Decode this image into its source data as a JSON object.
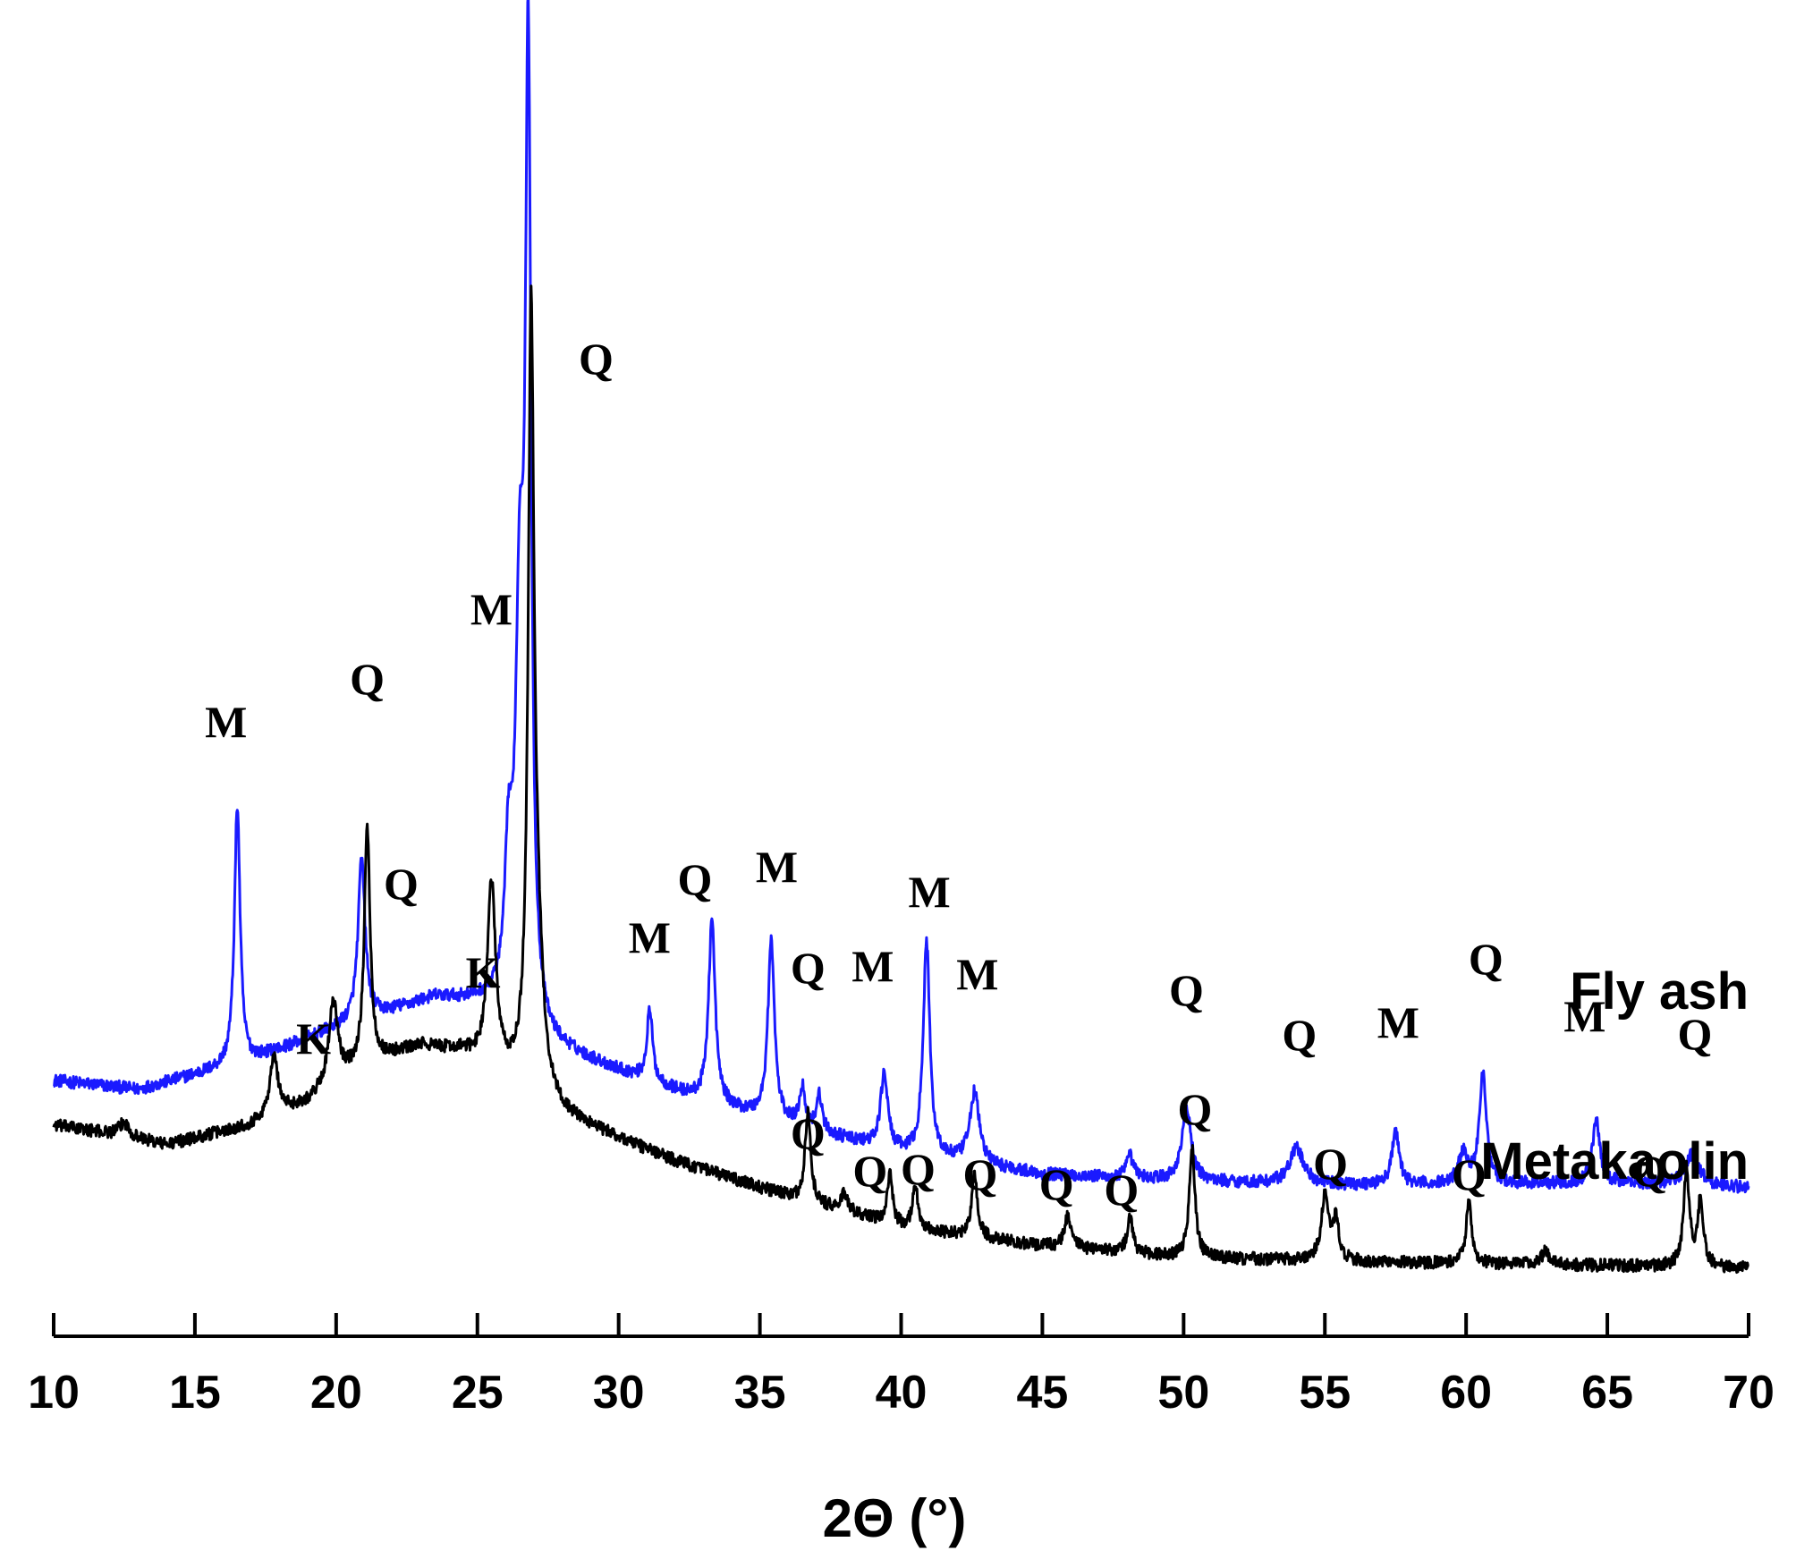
{
  "chart_data": {
    "type": "line",
    "title": "",
    "xlabel": "2Θ (°)",
    "ylabel": "",
    "xlim": [
      10,
      70
    ],
    "xticks": [
      10,
      15,
      20,
      25,
      30,
      35,
      40,
      45,
      50,
      55,
      60,
      65,
      70
    ],
    "y_axis_shown": false,
    "grid": false,
    "series": [
      {
        "name": "Fly ash",
        "color": "#1a1aff",
        "baseline": [
          [
            10,
            210
          ],
          [
            13,
            200
          ],
          [
            17,
            232
          ],
          [
            20,
            268
          ],
          [
            23.5,
            302
          ],
          [
            25.5,
            295
          ],
          [
            27.5,
            248
          ],
          [
            30,
            220
          ],
          [
            33,
            186
          ],
          [
            36,
            160
          ],
          [
            40,
            128
          ],
          [
            45,
            105
          ],
          [
            50,
            97
          ],
          [
            55,
            93
          ],
          [
            60,
            93
          ],
          [
            65,
            96
          ],
          [
            70,
            90
          ]
        ],
        "peaks": [
          {
            "x": 16.5,
            "h": 290,
            "w": 0.12
          },
          {
            "x": 20.9,
            "h": 180,
            "w": 0.15
          },
          {
            "x": 26.1,
            "h": 150,
            "w": 0.15
          },
          {
            "x": 26.5,
            "h": 430,
            "w": 0.18
          },
          {
            "x": 26.8,
            "h": 1040,
            "w": 0.12
          },
          {
            "x": 31.1,
            "h": 80,
            "w": 0.12
          },
          {
            "x": 33.3,
            "h": 205,
            "w": 0.14
          },
          {
            "x": 35.4,
            "h": 200,
            "w": 0.14
          },
          {
            "x": 36.5,
            "h": 45,
            "w": 0.12
          },
          {
            "x": 37.1,
            "h": 40,
            "w": 0.12
          },
          {
            "x": 39.4,
            "h": 85,
            "w": 0.15
          },
          {
            "x": 40.9,
            "h": 240,
            "w": 0.14
          },
          {
            "x": 42.6,
            "h": 80,
            "w": 0.2
          },
          {
            "x": 48.1,
            "h": 25,
            "w": 0.15
          },
          {
            "x": 50.1,
            "h": 80,
            "w": 0.2
          },
          {
            "x": 54,
            "h": 40,
            "w": 0.3
          },
          {
            "x": 57.5,
            "h": 60,
            "w": 0.15
          },
          {
            "x": 59.9,
            "h": 35,
            "w": 0.2
          },
          {
            "x": 60.6,
            "h": 125,
            "w": 0.15
          },
          {
            "x": 64.6,
            "h": 70,
            "w": 0.15
          },
          {
            "x": 68,
            "h": 35,
            "w": 0.3
          }
        ]
      },
      {
        "name": "Metakaolin",
        "color": "#000000",
        "baseline": [
          [
            10,
            160
          ],
          [
            12.5,
            148
          ],
          [
            14,
            138
          ],
          [
            17,
            160
          ],
          [
            19,
            185
          ],
          [
            21,
            228
          ],
          [
            23,
            248
          ],
          [
            24.5,
            240
          ],
          [
            26,
            210
          ],
          [
            28,
            170
          ],
          [
            32,
            120
          ],
          [
            36,
            80
          ],
          [
            40,
            45
          ],
          [
            45,
            25
          ],
          [
            50,
            12
          ],
          [
            55,
            8
          ],
          [
            60,
            5
          ],
          [
            65,
            3
          ],
          [
            70,
            0
          ]
        ],
        "peaks": [
          {
            "x": 12.5,
            "h": 15,
            "w": 0.2
          },
          {
            "x": 17.8,
            "h": 65,
            "w": 0.18
          },
          {
            "x": 19.9,
            "h": 90,
            "w": 0.2
          },
          {
            "x": 21.1,
            "h": 265,
            "w": 0.12
          },
          {
            "x": 25.5,
            "h": 205,
            "w": 0.18
          },
          {
            "x": 26.9,
            "h": 810,
            "w": 0.12
          },
          {
            "x": 27.1,
            "h": 150,
            "w": 0.25
          },
          {
            "x": 36.7,
            "h": 100,
            "w": 0.12
          },
          {
            "x": 38,
            "h": 20,
            "w": 0.15
          },
          {
            "x": 39.6,
            "h": 55,
            "w": 0.12
          },
          {
            "x": 40.5,
            "h": 50,
            "w": 0.12
          },
          {
            "x": 42.6,
            "h": 70,
            "w": 0.12
          },
          {
            "x": 45.9,
            "h": 35,
            "w": 0.15
          },
          {
            "x": 48.1,
            "h": 40,
            "w": 0.12
          },
          {
            "x": 50.3,
            "h": 125,
            "w": 0.12
          },
          {
            "x": 55,
            "h": 75,
            "w": 0.15
          },
          {
            "x": 55.4,
            "h": 45,
            "w": 0.12
          },
          {
            "x": 60.1,
            "h": 70,
            "w": 0.12
          },
          {
            "x": 62.8,
            "h": 15,
            "w": 0.15
          },
          {
            "x": 67.8,
            "h": 110,
            "w": 0.12
          },
          {
            "x": 68.3,
            "h": 75,
            "w": 0.12
          }
        ]
      }
    ],
    "series_labels": [
      {
        "text": "Fly ash",
        "x": 70,
        "y": 290
      },
      {
        "text": "Metakaolin",
        "x": 70,
        "y": 100
      }
    ],
    "annotations": [
      {
        "text": "Q",
        "x": 29.2,
        "y": 1000
      },
      {
        "text": "M",
        "x": 25.5,
        "y": 720
      },
      {
        "text": "Q",
        "x": 21.1,
        "y": 642
      },
      {
        "text": "M",
        "x": 16.1,
        "y": 594
      },
      {
        "text": "Q",
        "x": 22.3,
        "y": 413
      },
      {
        "text": "K",
        "x": 19.2,
        "y": 240
      },
      {
        "text": "K",
        "x": 25.2,
        "y": 314
      },
      {
        "text": "M",
        "x": 31.1,
        "y": 353
      },
      {
        "text": "Q",
        "x": 32.7,
        "y": 418
      },
      {
        "text": "M",
        "x": 35.6,
        "y": 432
      },
      {
        "text": "Q",
        "x": 36.7,
        "y": 319
      },
      {
        "text": "M",
        "x": 39.0,
        "y": 321
      },
      {
        "text": "M",
        "x": 41.0,
        "y": 404
      },
      {
        "text": "M",
        "x": 42.7,
        "y": 312
      },
      {
        "text": "Q",
        "x": 50.1,
        "y": 294
      },
      {
        "text": "Q",
        "x": 54.1,
        "y": 244
      },
      {
        "text": "M",
        "x": 57.6,
        "y": 258
      },
      {
        "text": "Q",
        "x": 60.7,
        "y": 329
      },
      {
        "text": "M",
        "x": 64.2,
        "y": 265
      },
      {
        "text": "Q",
        "x": 68.1,
        "y": 245
      },
      {
        "text": "Q",
        "x": 36.7,
        "y": 134
      },
      {
        "text": "Q",
        "x": 38.9,
        "y": 92
      },
      {
        "text": "Q",
        "x": 40.6,
        "y": 94
      },
      {
        "text": "Q",
        "x": 42.8,
        "y": 88
      },
      {
        "text": "Q",
        "x": 45.5,
        "y": 77
      },
      {
        "text": "Q",
        "x": 47.8,
        "y": 71
      },
      {
        "text": "Q",
        "x": 50.4,
        "y": 161
      },
      {
        "text": "Q",
        "x": 55.2,
        "y": 100
      },
      {
        "text": "Q",
        "x": 60.1,
        "y": 88
      },
      {
        "text": "Q",
        "x": 66.5,
        "y": 92
      }
    ]
  }
}
